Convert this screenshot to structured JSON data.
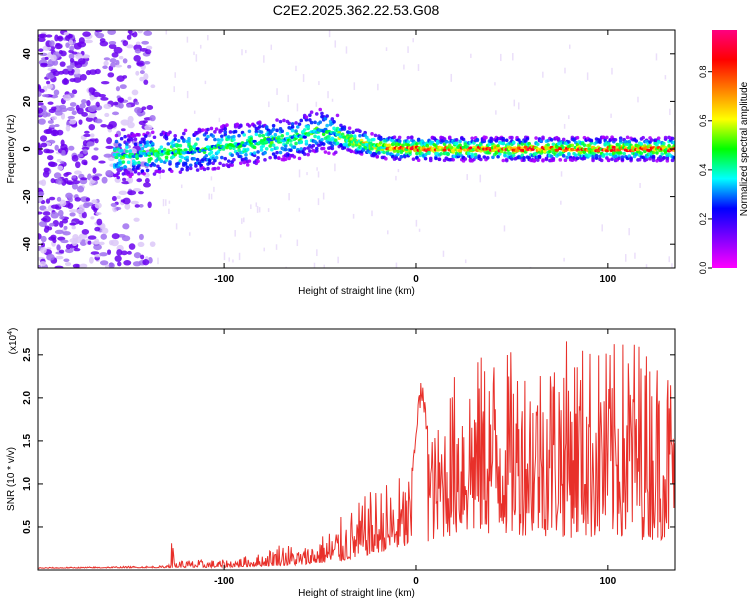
{
  "title": "C2E2.2025.362.22.53.G08",
  "colors": {
    "snr_line": "#e8302a",
    "colorbar": [
      "#ff00ff",
      "#7f00ff",
      "#0000ff",
      "#00ffff",
      "#00ff00",
      "#ffff00",
      "#ff7f00",
      "#ff0000",
      "#ff0080"
    ]
  },
  "chart_data": [
    {
      "type": "heatmap",
      "name": "spectrogram",
      "xlabel": "Height of straight line (km)",
      "ylabel": "Frequency (Hz)",
      "xlim": [
        -197,
        135
      ],
      "ylim": [
        -50,
        50
      ],
      "xticks": [
        -100,
        0,
        100
      ],
      "xtick_labels": [
        "-100",
        "0",
        "100"
      ],
      "yticks": [
        -40,
        -20,
        0,
        20,
        40
      ],
      "ytick_labels": [
        "-40",
        "-20",
        "0",
        "20",
        "40"
      ],
      "ridge": {
        "x": [
          -155,
          -140,
          -120,
          -100,
          -80,
          -60,
          -50,
          -45,
          -35,
          -20,
          0,
          20,
          50,
          80,
          100,
          135
        ],
        "freq": [
          -3,
          -2,
          -1,
          1,
          3,
          5,
          8,
          7,
          4,
          1,
          0,
          0,
          0,
          0,
          0,
          0
        ]
      },
      "colorbar": {
        "label": "Normalized spectral amplitude",
        "range": [
          0,
          0.97
        ],
        "ticks": [
          0.0,
          0.2,
          0.4,
          0.6,
          0.8
        ],
        "tick_labels": [
          "0.0",
          "0.2",
          "0.4",
          "0.6",
          "0.8"
        ]
      }
    },
    {
      "type": "line",
      "name": "snr",
      "xlabel": "Height of straight line (km)",
      "ylabel": "SNR (10 * v/v)",
      "y_scale_label": "(x10",
      "y_scale_exp": "4",
      "xlim": [
        -197,
        135
      ],
      "ylim": [
        0,
        28000
      ],
      "xticks": [
        -100,
        0,
        100
      ],
      "xtick_labels": [
        "-100",
        "0",
        "100"
      ],
      "yticks": [
        5000,
        10000,
        15000,
        20000,
        25000
      ],
      "ytick_labels": [
        "0.5",
        "1.0",
        "1.5",
        "2.0",
        "2.5"
      ],
      "envelope": {
        "x": [
          -197,
          -160,
          -130,
          -128,
          -125,
          -100,
          -80,
          -70,
          -60,
          -50,
          -40,
          -30,
          -20,
          -10,
          -2,
          1,
          3,
          5,
          10,
          20,
          40,
          60,
          80,
          100,
          115,
          120,
          135
        ],
        "y": [
          300,
          400,
          500,
          4000,
          1200,
          1200,
          2000,
          3500,
          2500,
          4000,
          6000,
          8000,
          10000,
          11000,
          12000,
          20000,
          22500,
          19000,
          16000,
          23000,
          26000,
          25000,
          27000,
          26000,
          28000,
          26000,
          24000
        ]
      },
      "floor": {
        "x": [
          -197,
          -100,
          -60,
          -40,
          -20,
          0,
          20,
          60,
          100,
          135
        ],
        "y": [
          200,
          300,
          600,
          1000,
          2000,
          3000,
          4000,
          4000,
          3500,
          3500
        ]
      }
    }
  ]
}
